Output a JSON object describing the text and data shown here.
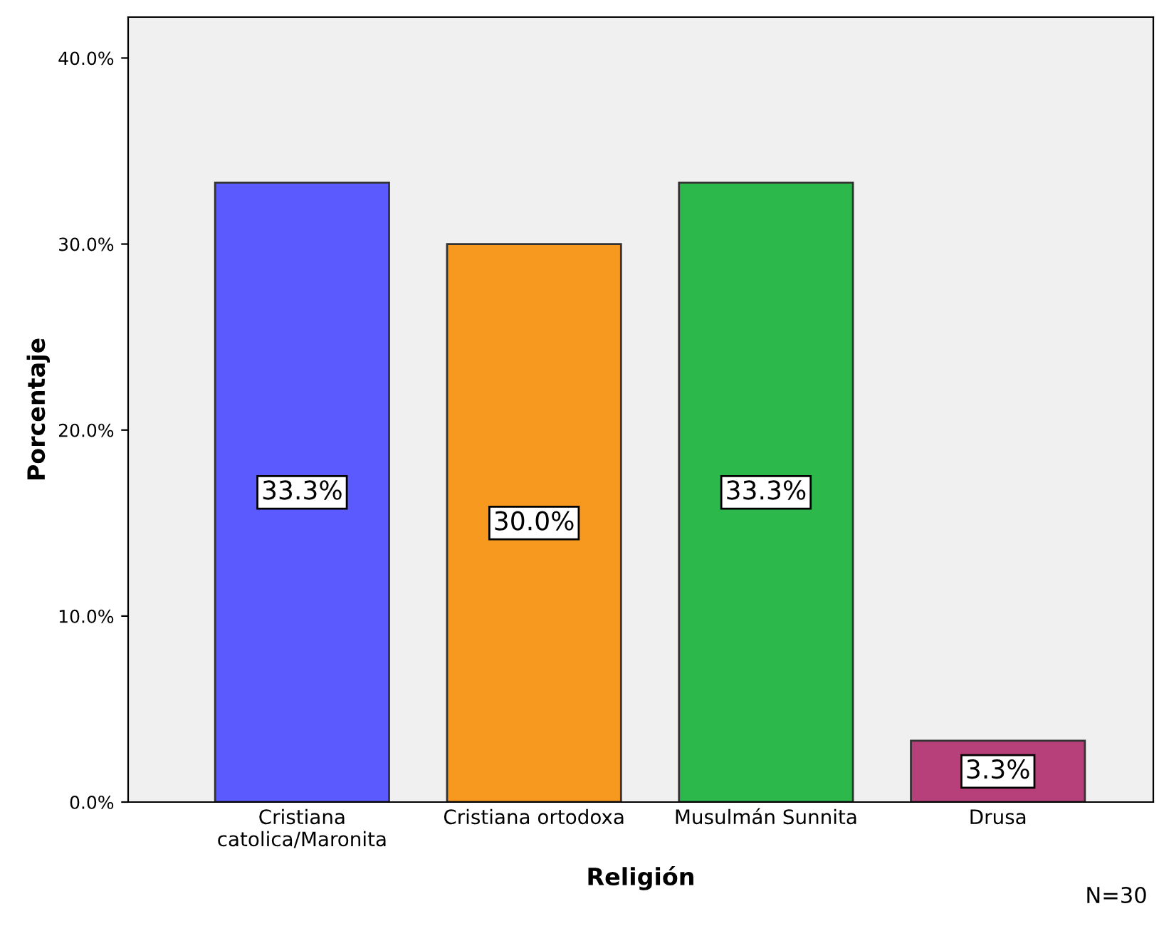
{
  "chart_data": {
    "type": "bar",
    "xlabel": "Religión",
    "ylabel": "Porcentaje",
    "categories": [
      "Cristiana\ncatolica/Maronita",
      "Cristiana ortodoxa",
      "Musulmán Sunnita",
      "Drusa"
    ],
    "values": [
      33.3,
      30.0,
      33.3,
      3.3
    ],
    "colors": [
      "#5a5aff",
      "#f7991f",
      "#2db84b",
      "#b8407a"
    ],
    "value_labels": [
      "33.3%",
      "30.0%",
      "33.3%",
      "3.3%"
    ],
    "ylim": [
      0,
      42.2
    ],
    "yticks": [
      {
        "value": 0,
        "label": "0.0%"
      },
      {
        "value": 10,
        "label": "10.0%"
      },
      {
        "value": 20,
        "label": "20.0%"
      },
      {
        "value": 30,
        "label": "30.0%"
      },
      {
        "value": 40,
        "label": "40.0%"
      }
    ],
    "grid": false,
    "legend": false,
    "annotations": [
      "N=30"
    ]
  }
}
